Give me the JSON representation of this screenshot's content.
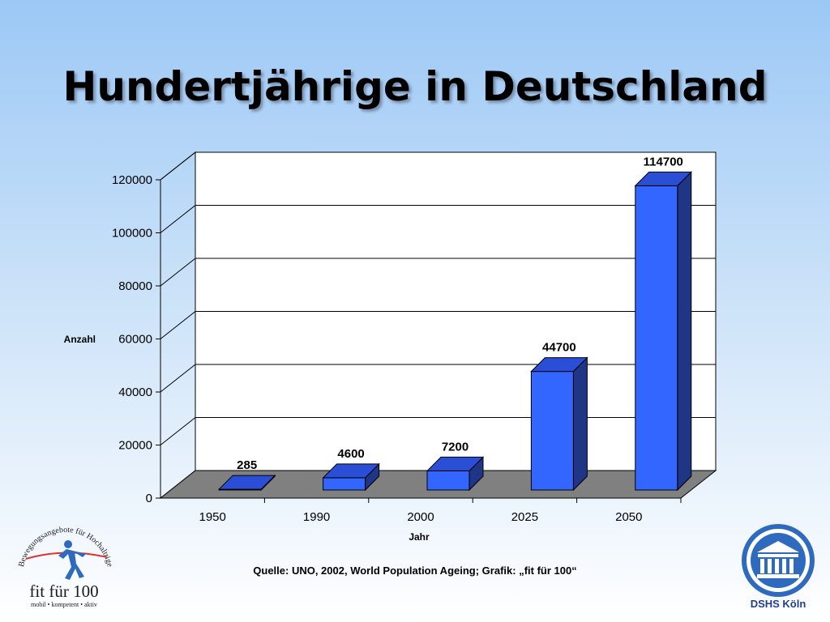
{
  "slide": {
    "title": "Hundertjährige in Deutschland",
    "source": "Quelle: UNO, 2002, World Population Ageing; Grafik: „fit für 100“"
  },
  "logos": {
    "left": {
      "arc_text": "Bewegungsangebote für Hochaltrige",
      "name": "fit für 100",
      "tagline": "mobil • kompetent • aktiv"
    },
    "right": {
      "name": "DSHS Köln"
    }
  },
  "colors": {
    "bar_front": "#3366ff",
    "bar_top": "#2a4fd6",
    "bar_side": "#1f3585",
    "floor": "#808080",
    "grid": "#000000",
    "logo_blue": "#2e6bbf"
  },
  "chart_data": {
    "type": "bar",
    "title": "",
    "xlabel": "Jahr",
    "ylabel": "Anzahl",
    "categories": [
      "1950",
      "1990",
      "2000",
      "2025",
      "2050"
    ],
    "values": [
      285,
      4600,
      7200,
      44700,
      114700
    ],
    "data_labels": [
      "285",
      "4600",
      "7200",
      "44700",
      "114700"
    ],
    "ylim": [
      0,
      120000
    ],
    "yticks": [
      0,
      20000,
      40000,
      60000,
      80000,
      100000,
      120000
    ],
    "ytick_labels": [
      "0",
      "20000",
      "40000",
      "60000",
      "80000",
      "100000",
      "120000"
    ],
    "grid": true,
    "legend": "none",
    "style": "3d-bar"
  }
}
